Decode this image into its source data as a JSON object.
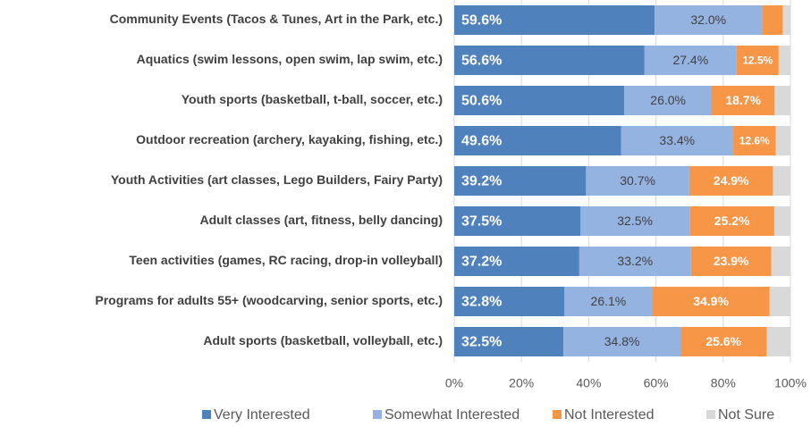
{
  "chart_data": {
    "type": "bar",
    "orientation": "horizontal",
    "stacked": true,
    "categories": [
      "Community Events (Tacos & Tunes, Art in the Park, etc.)",
      "Aquatics (swim lessons, open swim, lap swim, etc.)",
      "Youth sports (basketball, t-ball, soccer, etc.)",
      "Outdoor recreation (archery, kayaking, fishing, etc.)",
      "Youth Activities (art classes, Lego Builders, Fairy Party)",
      "Adult classes (art, fitness, belly dancing)",
      "Teen activities (games, RC racing, drop-in volleyball)",
      "Programs for adults 55+ (woodcarving, senior sports, etc.)",
      "Adult sports (basketball, volleyball, etc.)"
    ],
    "series": [
      {
        "name": "Very Interested",
        "color": "#4f81bd",
        "values": [
          59.6,
          56.6,
          50.6,
          49.6,
          39.2,
          37.5,
          37.2,
          32.8,
          32.5
        ],
        "value_labels": [
          "59.6%",
          "56.6%",
          "50.6%",
          "49.6%",
          "39.2%",
          "37.5%",
          "37.2%",
          "32.8%",
          "32.5%"
        ]
      },
      {
        "name": "Somewhat Interested",
        "color": "#95b3e0",
        "values": [
          32.0,
          27.4,
          26.0,
          33.4,
          30.7,
          32.5,
          33.2,
          26.1,
          34.8
        ],
        "value_labels": [
          "32.0%",
          "27.4%",
          "26.0%",
          "33.4%",
          "30.7%",
          "32.5%",
          "33.2%",
          "26.1%",
          "34.8%"
        ]
      },
      {
        "name": "Not Interested",
        "color": "#f79646",
        "values": [
          6.1,
          12.5,
          18.7,
          12.6,
          24.9,
          25.2,
          23.9,
          34.9,
          25.6
        ],
        "value_labels": [
          null,
          "12.5%",
          "18.7%",
          "12.6%",
          "24.9%",
          "25.2%",
          "23.9%",
          "34.9%",
          "25.6%"
        ]
      },
      {
        "name": "Not Sure",
        "color": "#d9d9d9",
        "values": [
          2.3,
          3.5,
          4.7,
          4.4,
          5.2,
          4.8,
          5.7,
          6.2,
          7.1
        ]
      }
    ],
    "xlim": [
      0,
      100
    ],
    "xticks": [
      {
        "value": 0,
        "label": "0%"
      },
      {
        "value": 20,
        "label": "20%"
      },
      {
        "value": 40,
        "label": "40%"
      },
      {
        "value": 60,
        "label": "60%"
      },
      {
        "value": 80,
        "label": "80%"
      },
      {
        "value": 100,
        "label": "100%"
      }
    ],
    "grid": true,
    "legend": "bottom"
  }
}
